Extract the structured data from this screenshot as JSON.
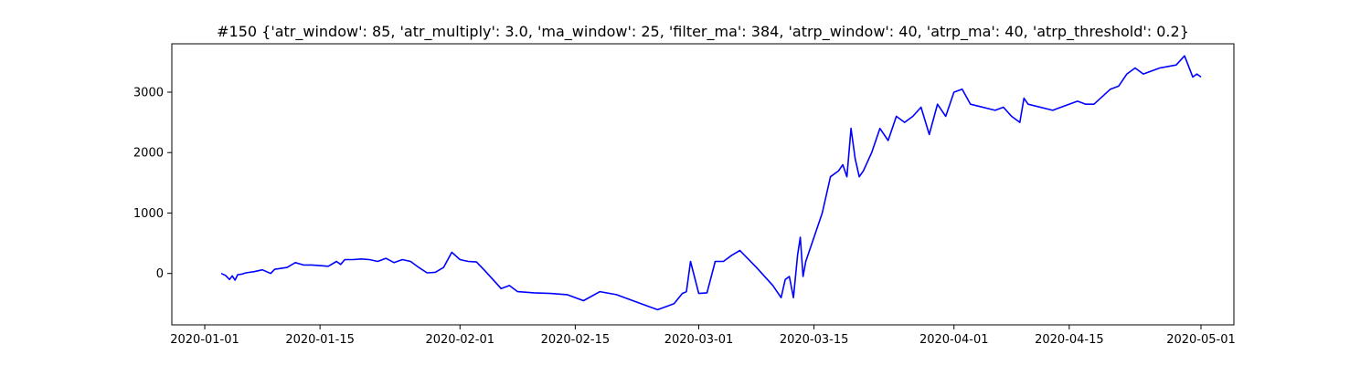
{
  "chart_data": {
    "type": "line",
    "title": "#150 {'atr_window': 85, 'atr_multiply': 3.0, 'ma_window': 25, 'filter_ma': 384, 'atrp_window': 40, 'atrp_ma': 40, 'atrp_threshold': 0.2}",
    "xlabel": "",
    "ylabel": "",
    "xlim": [
      "2019-12-28",
      "2020-05-05"
    ],
    "ylim": [
      -850,
      3800
    ],
    "grid": false,
    "line_color": "#0000ff",
    "x_ticks": [
      "2020-01-01",
      "2020-01-15",
      "2020-02-01",
      "2020-02-15",
      "2020-03-01",
      "2020-03-15",
      "2020-04-01",
      "2020-04-15",
      "2020-05-01"
    ],
    "y_ticks": [
      0,
      1000,
      2000,
      3000
    ],
    "y_tick_labels": [
      "0",
      "1000",
      "2000",
      "3000"
    ],
    "series": [
      {
        "x": [
          "2020-01-03",
          "2020-01-03",
          "2020-01-04",
          "2020-01-04",
          "2020-01-04",
          "2020-01-05",
          "2020-01-05",
          "2020-01-06",
          "2020-01-07",
          "2020-01-08",
          "2020-01-09",
          "2020-01-09",
          "2020-01-10",
          "2020-01-11",
          "2020-01-12",
          "2020-01-13",
          "2020-01-14",
          "2020-01-15",
          "2020-01-16",
          "2020-01-17",
          "2020-01-17",
          "2020-01-18",
          "2020-01-19",
          "2020-01-20",
          "2020-01-21",
          "2020-01-22",
          "2020-01-23",
          "2020-01-24",
          "2020-01-25",
          "2020-01-26",
          "2020-01-27",
          "2020-01-28",
          "2020-01-29",
          "2020-01-30",
          "2020-01-31",
          "2020-02-01",
          "2020-02-02",
          "2020-02-03",
          "2020-02-04",
          "2020-02-05",
          "2020-02-06",
          "2020-02-07",
          "2020-02-08",
          "2020-02-10",
          "2020-02-12",
          "2020-02-14",
          "2020-02-16",
          "2020-02-18",
          "2020-02-20",
          "2020-02-22",
          "2020-02-24",
          "2020-02-25",
          "2020-02-26",
          "2020-02-27",
          "2020-02-28",
          "2020-02-28",
          "2020-02-29",
          "2020-03-01",
          "2020-03-02",
          "2020-03-03",
          "2020-03-04",
          "2020-03-05",
          "2020-03-06",
          "2020-03-08",
          "2020-03-10",
          "2020-03-11",
          "2020-03-11",
          "2020-03-12",
          "2020-03-12",
          "2020-03-13",
          "2020-03-13",
          "2020-03-13",
          "2020-03-14",
          "2020-03-16",
          "2020-03-17",
          "2020-03-18",
          "2020-03-18",
          "2020-03-19",
          "2020-03-19",
          "2020-03-20",
          "2020-03-20",
          "2020-03-21",
          "2020-03-22",
          "2020-03-23",
          "2020-03-24",
          "2020-03-25",
          "2020-03-26",
          "2020-03-27",
          "2020-03-28",
          "2020-03-29",
          "2020-03-30",
          "2020-03-31",
          "2020-04-01",
          "2020-04-02",
          "2020-04-03",
          "2020-04-06",
          "2020-04-07",
          "2020-04-08",
          "2020-04-09",
          "2020-04-09",
          "2020-04-10",
          "2020-04-13",
          "2020-04-14",
          "2020-04-16",
          "2020-04-17",
          "2020-04-18",
          "2020-04-20",
          "2020-04-21",
          "2020-04-22",
          "2020-04-23",
          "2020-04-24",
          "2020-04-26",
          "2020-04-28",
          "2020-04-29",
          "2020-04-30",
          "2020-04-30",
          "2020-05-01"
        ],
        "values": [
          0,
          -30,
          -100,
          -40,
          -110,
          -20,
          -10,
          10,
          30,
          60,
          0,
          70,
          80,
          100,
          180,
          140,
          140,
          130,
          120,
          200,
          150,
          230,
          230,
          240,
          230,
          200,
          250,
          180,
          230,
          200,
          100,
          10,
          20,
          100,
          350,
          230,
          200,
          190,
          50,
          -100,
          -250,
          -200,
          -300,
          -320,
          -330,
          -350,
          -450,
          -300,
          -350,
          -450,
          -550,
          -600,
          -550,
          -500,
          -330,
          -300,
          200,
          -330,
          -320,
          200,
          200,
          300,
          380,
          100,
          -200,
          -400,
          -100,
          -50,
          -400,
          300,
          600,
          -50,
          200,
          1000,
          1600,
          1700,
          1800,
          1600,
          2400,
          1900,
          1600,
          1700,
          2000,
          2400,
          2200,
          2600,
          2500,
          2600,
          2750,
          2300,
          2800,
          2600,
          3000,
          3050,
          2800,
          2700,
          2750,
          2600,
          2500,
          2900,
          2800,
          2700,
          2750,
          2850,
          2800,
          2800,
          3050,
          3100,
          3300,
          3400,
          3300,
          3400,
          3450,
          3600,
          3250,
          3300,
          3250
        ]
      }
    ]
  }
}
